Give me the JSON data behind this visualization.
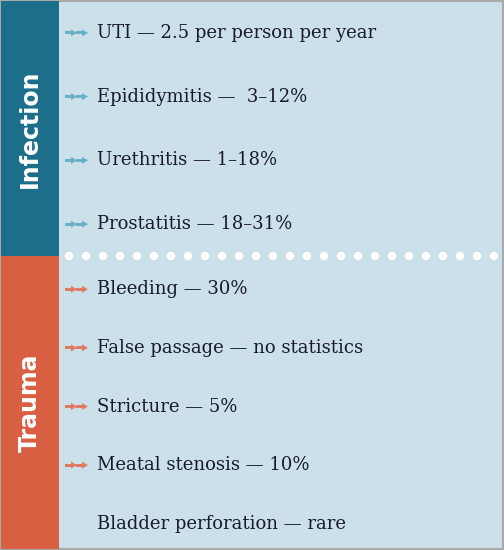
{
  "bg_color": "#cce0ea",
  "infection_bar_color": "#1c6e8a",
  "trauma_bar_color": "#d95f43",
  "text_color": "#1a1a2e",
  "white_text": "#ffffff",
  "border_color": "#aaaaaa",
  "infection_label": "Infection",
  "trauma_label": "Trauma",
  "infection_items": [
    {
      "text": "UTI — 2.5 per person per year",
      "arrow": true
    },
    {
      "text": "Epididymitis —  3–12%",
      "arrow": true
    },
    {
      "text": "Urethritis — 1–18%",
      "arrow": true
    },
    {
      "text": "Prostatitis — 18–31%",
      "arrow": true
    }
  ],
  "trauma_items": [
    {
      "text": "Bleeding — 30%",
      "arrow": true
    },
    {
      "text": "False passage — no statistics",
      "arrow": true
    },
    {
      "text": "Stricture — 5%",
      "arrow": true
    },
    {
      "text": "Meatal stenosis — 10%",
      "arrow": true
    },
    {
      "text": "Bladder perforation — rare",
      "arrow": false
    }
  ],
  "figsize": [
    5.04,
    5.5
  ],
  "dpi": 100,
  "infection_arrow_color": "#6aafc8",
  "trauma_arrow_color": "#e07a65",
  "dotted_line_color": "#ffffff"
}
